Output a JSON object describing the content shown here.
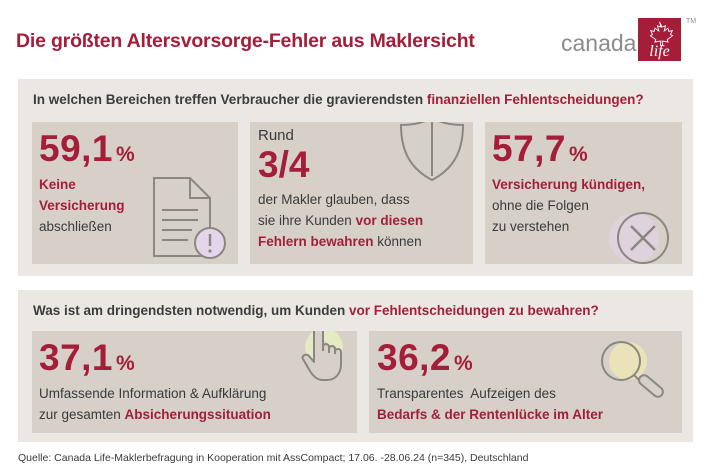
{
  "header": {
    "title": "Die größten Altersvorsorge-Fehler aus Maklersicht",
    "brand_text": "canada",
    "brand_logo_text": "life",
    "brand_tm": "TM"
  },
  "section1": {
    "question_plain": "In welchen Bereichen treffen Verbraucher die gravierendsten ",
    "question_highlight": "finanziellen Fehlentscheidungen?",
    "card1": {
      "value": "59,1",
      "unit": "%",
      "line1": "Keine",
      "line2": "Versicherung",
      "line3": "abschließen",
      "icon": "document-warning-icon"
    },
    "card2": {
      "prefix": "Rund",
      "value": "3/4",
      "line1": "der Makler glauben, dass",
      "line2a": "sie ihre Kunden ",
      "line2b": "vor diesen",
      "line3a": "Fehlern bewahren",
      "line3b": " können",
      "icon": "shield-icon"
    },
    "card3": {
      "value": "57,7",
      "unit": "%",
      "line1": "Versicherung kündigen,",
      "line2": "ohne die Folgen",
      "line3": "zu verstehen",
      "icon": "cancel-circle-icon"
    }
  },
  "section2": {
    "question_plain": "Was ist am dringendsten notwendig, um Kunden ",
    "question_highlight": "vor Fehlentscheidungen zu bewahren?",
    "card4": {
      "value": "37,1",
      "unit": "%",
      "line1": "Umfassende Information & Aufklärung",
      "line2a": "zur gesamten ",
      "line2b": "Absicherungssituation",
      "icon": "pointing-hand-icon"
    },
    "card5": {
      "value": "36,2",
      "unit": "%",
      "line1": "Transparentes  Aufzeigen des",
      "line2": "Bedarfs & der Rentenlücke im Alter",
      "icon": "magnifier-icon"
    }
  },
  "source": "Quelle: Canada Life-Maklerbefragung in Kooperation mit AssCompact; 17.06. -28.06.24 (n=345), Deutschland",
  "colors": {
    "accent": "#a41e3a",
    "panel": "#ebe8e3",
    "card": "#d6d0c8",
    "icon_highlight": "#e3d6ea"
  }
}
